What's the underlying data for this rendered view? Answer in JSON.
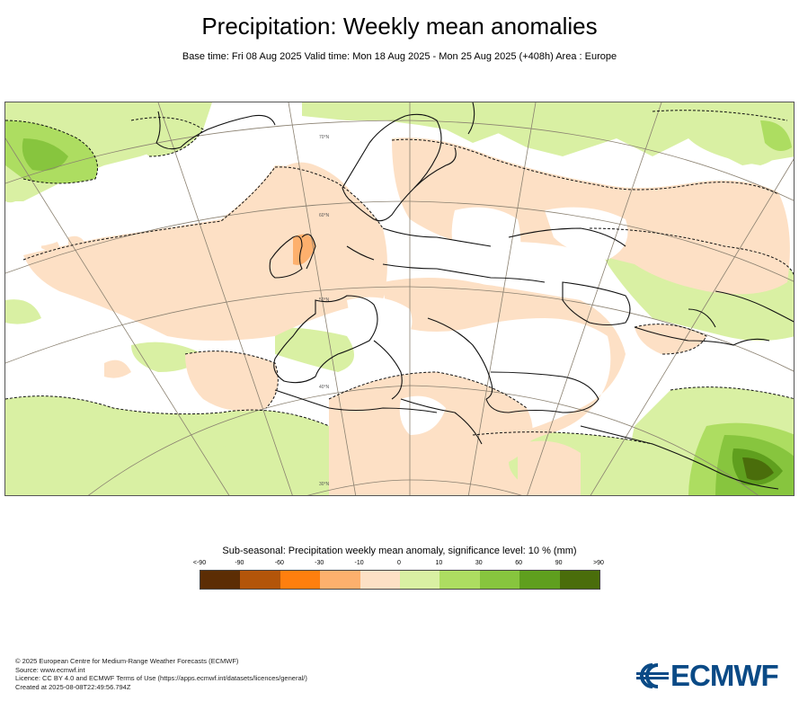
{
  "header": {
    "title": "Precipitation: Weekly mean anomalies",
    "subtitle": "Base time: Fri 08 Aug 2025 Valid time: Mon 18 Aug 2025 - Mon 25 Aug 2025 (+408h) Area : Europe"
  },
  "map": {
    "area": "Europe",
    "latitude_labels": [
      "70°N",
      "60°N",
      "50°N",
      "40°N",
      "30°N"
    ]
  },
  "legend": {
    "title": "Sub-seasonal: Precipitation weekly mean anomaly, significance level: 10 % (mm)",
    "ticks": [
      "<-90",
      "-90",
      "-60",
      "-30",
      "-10",
      "0",
      "10",
      "30",
      "60",
      "90",
      ">90"
    ],
    "colors": [
      "#5c2d04",
      "#b3550a",
      "#ff7f0e",
      "#fdb06d",
      "#fde0c5",
      "#d9f0a3",
      "#addd61",
      "#87c53e",
      "#5f9f1e",
      "#4a6d0b"
    ]
  },
  "footer": {
    "line1": "© 2025 European Centre for Medium-Range Weather Forecasts (ECMWF)",
    "line2": "Source: www.ecmwf.int",
    "line3": "Licence: CC BY 4.0 and ECMWF Terms of Use (https://apps.ecmwf.int/datasets/licences/general/)",
    "line4": "Created at 2025-08-08T22:49:56.794Z"
  },
  "logo": {
    "text": "ECMWF",
    "icon": "ecmwf-logo-icon",
    "color": "#0a4a86"
  }
}
